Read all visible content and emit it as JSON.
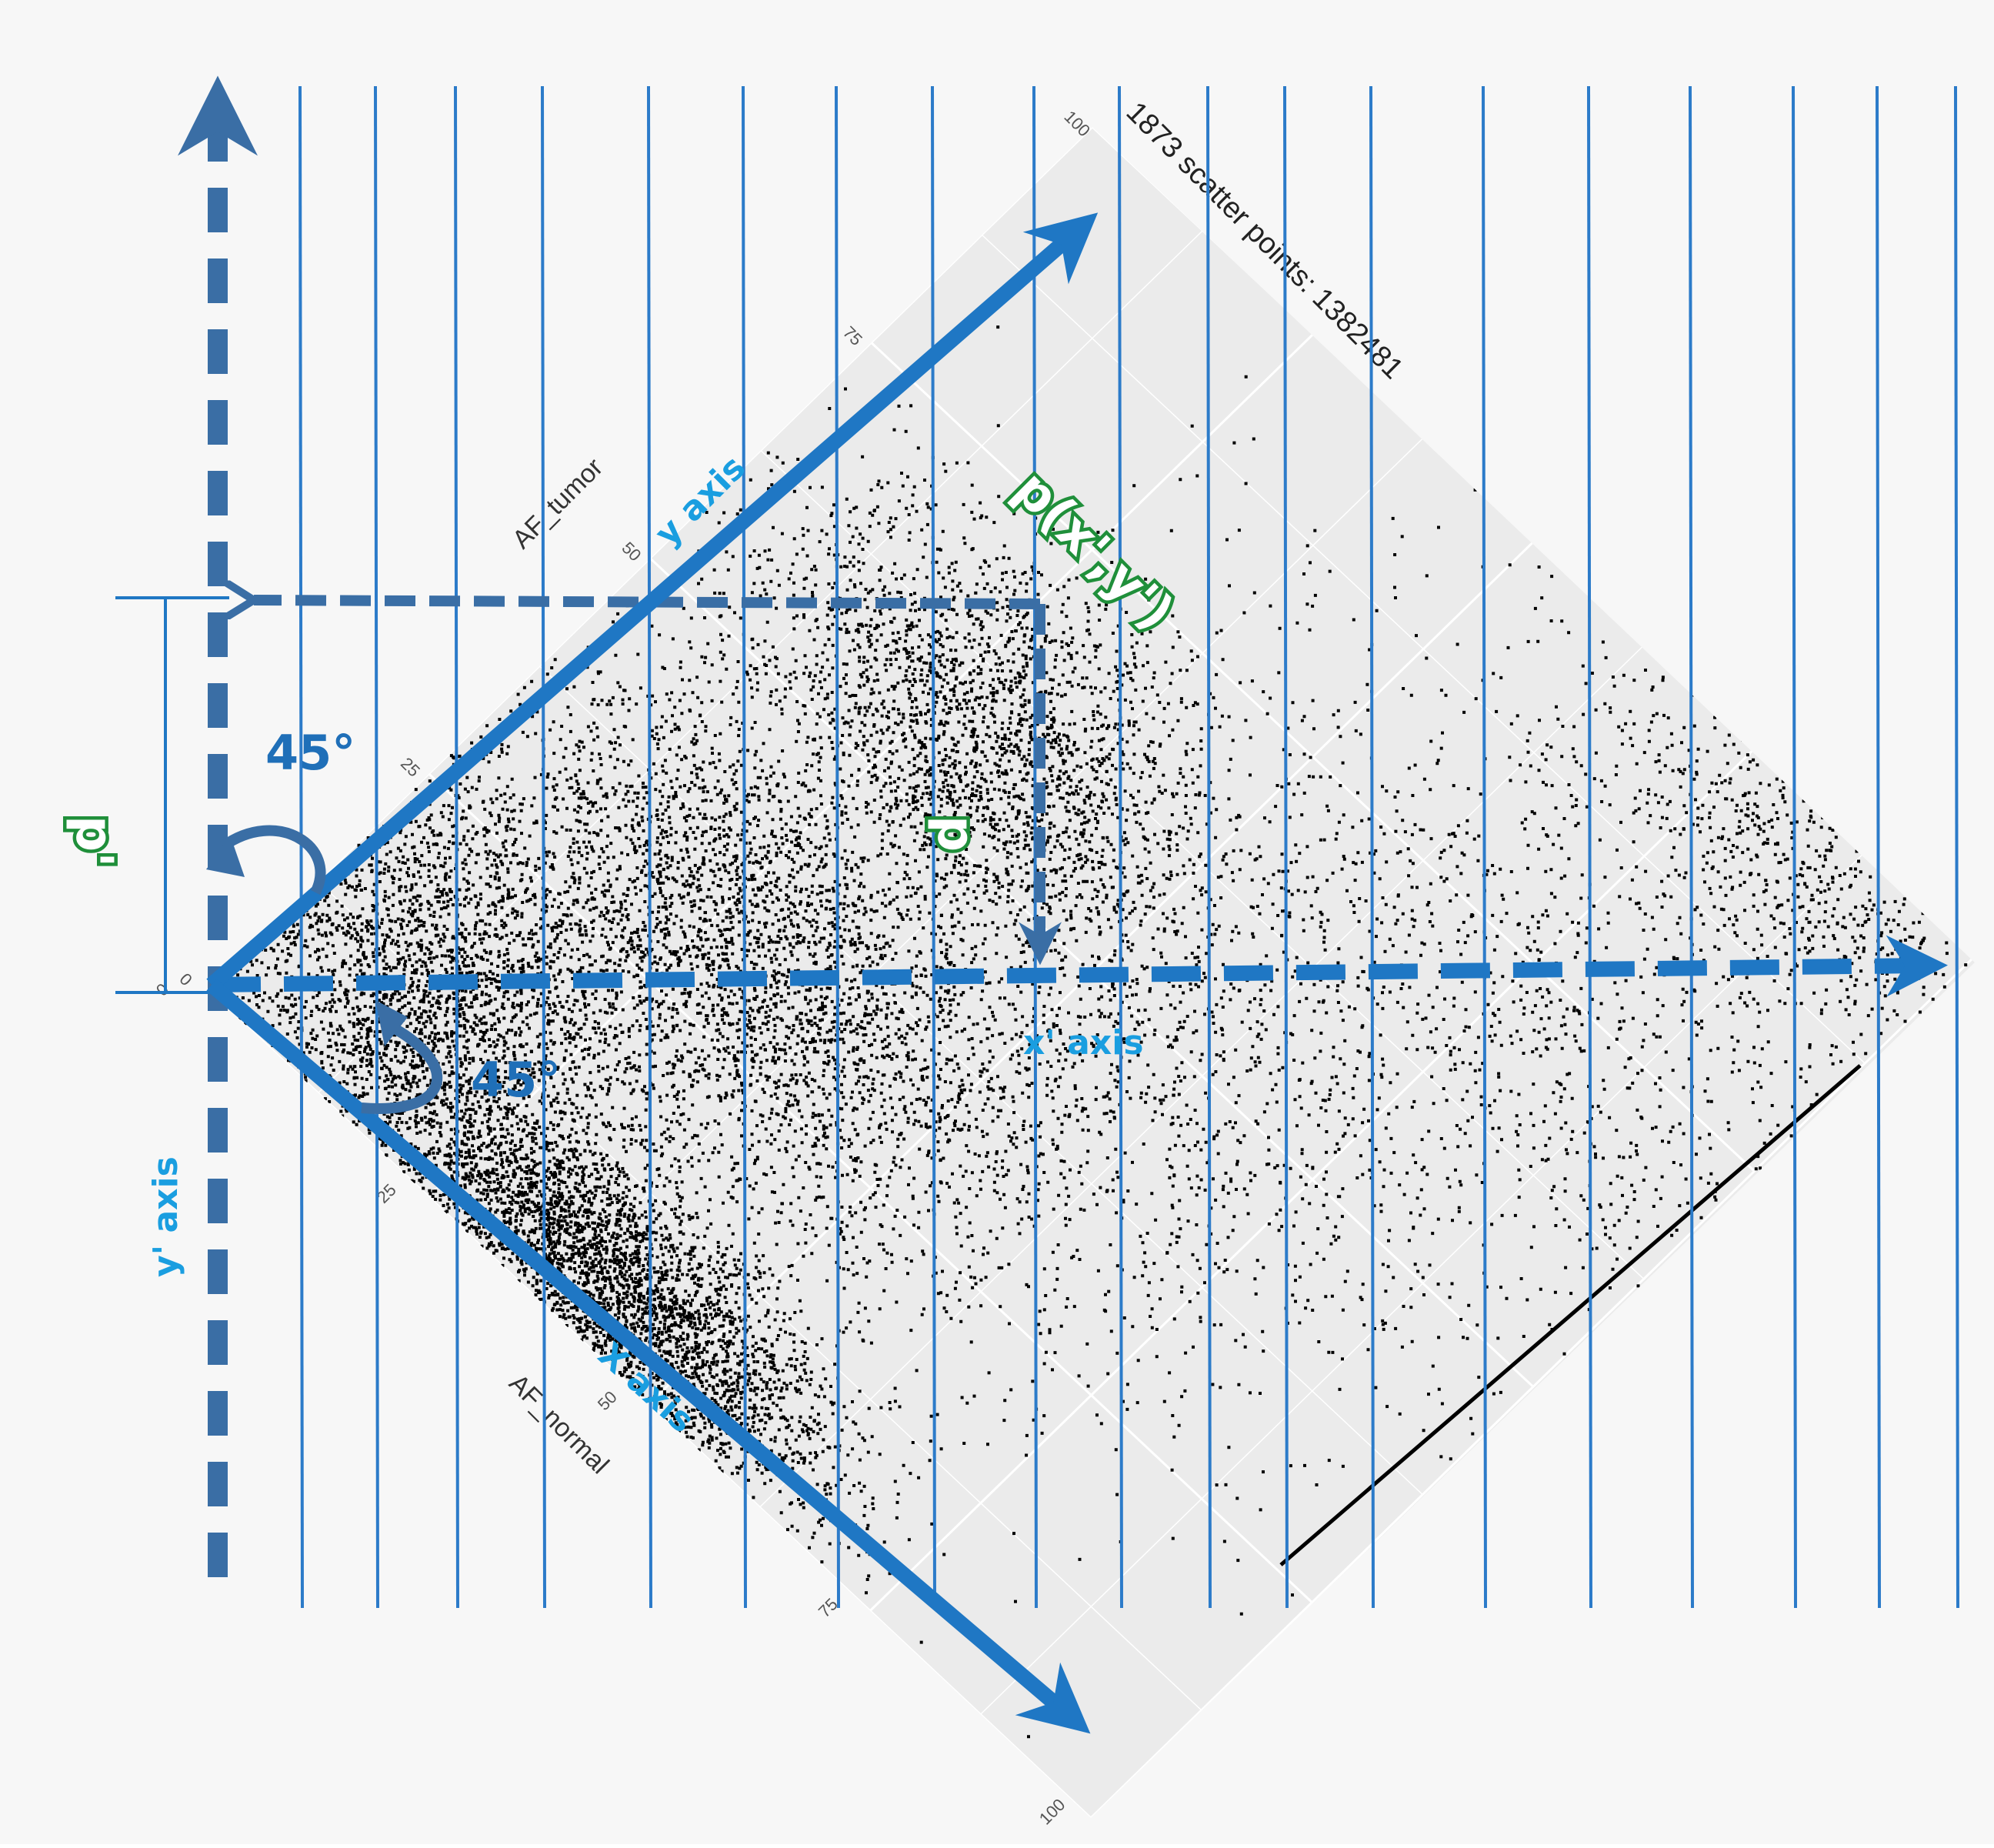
{
  "title": "1873  scatter points: 1382481",
  "axes": {
    "normal_axis_title": "AF_normal",
    "tumor_axis_title": "AF_tumor",
    "ticks": [
      "0",
      "25",
      "50",
      "75",
      "100"
    ]
  },
  "annotations": {
    "x_axis": "X axis",
    "y_axis": "y axis",
    "x_prime_axis": "x' axis",
    "y_prime_axis": "y' axis",
    "point_label": "p(x',y')",
    "p_label": "p",
    "p_prime_label": "p'",
    "angle_top": "45°",
    "angle_bottom": "45°"
  },
  "colors": {
    "background": "#f7f7f7",
    "panel": "#ebebeb",
    "grid": "#ffffff",
    "points": "#000000",
    "axis_arrow": "#1f77c4",
    "dashed_arrow": "#3a6ea5",
    "scan_lines": "#2c7bc9",
    "label_green": "#1f8f3a",
    "label_blue": "#1a9ee0"
  },
  "chart_data": {
    "type": "scatter",
    "title": "1873  scatter points: 1382481",
    "xlabel": "AF_normal",
    "ylabel": "AF_tumor",
    "xlim": [
      0,
      100
    ],
    "ylim": [
      0,
      100
    ],
    "grid": true,
    "rotation_degrees": 45,
    "point_clusters": [
      {
        "center": [
          12,
          12
        ],
        "spread": [
          10,
          9
        ],
        "weight": 0.21
      },
      {
        "center": [
          40,
          5
        ],
        "spread": [
          12,
          4
        ],
        "weight": 0.24
      },
      {
        "center": [
          35,
          30
        ],
        "spread": [
          12,
          8
        ],
        "weight": 0.12
      },
      {
        "center": [
          28,
          58
        ],
        "spread": [
          11,
          7
        ],
        "weight": 0.14
      },
      {
        "center": [
          50,
          45
        ],
        "spread": [
          18,
          15
        ],
        "weight": 0.1
      },
      {
        "center": [
          20,
          35
        ],
        "spread": [
          10,
          6
        ],
        "weight": 0.06
      },
      {
        "center": [
          70,
          65
        ],
        "spread": [
          18,
          18
        ],
        "weight": 0.06
      },
      {
        "center": [
          85,
          95
        ],
        "spread": [
          12,
          4
        ],
        "weight": 0.04
      },
      {
        "center": [
          85,
          75
        ],
        "spread": [
          15,
          10
        ],
        "weight": 0.03
      }
    ],
    "diagonal_line": {
      "from": [
        72,
        100
      ],
      "to": [
        100,
        100
      ]
    }
  }
}
